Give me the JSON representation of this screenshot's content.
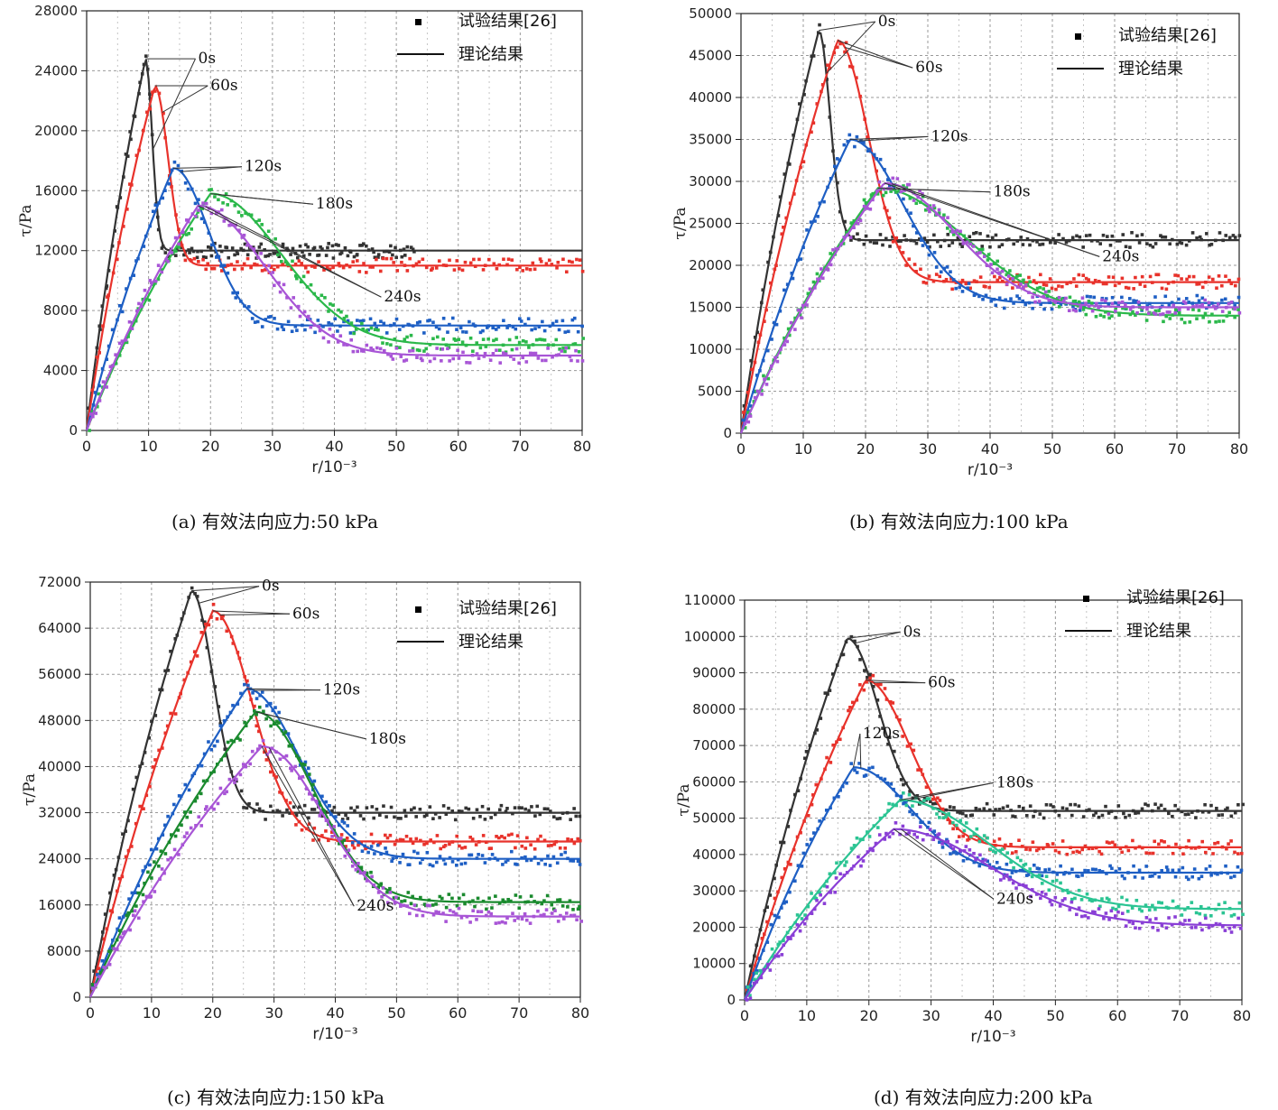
{
  "chart_data": [
    {
      "id": "a",
      "type": "scatter+line",
      "caption": "(a) 有效法向应力:50 kPa",
      "xlabel": "r/10⁻³",
      "ylabel": "τ/Pa",
      "xlim": [
        0,
        80
      ],
      "ylim": [
        0,
        28000
      ],
      "xticks": [
        0,
        10,
        20,
        30,
        40,
        50,
        60,
        70,
        80
      ],
      "yticks": [
        0,
        4000,
        8000,
        12000,
        16000,
        20000,
        24000,
        28000
      ],
      "grid": true,
      "legend": {
        "placement": "top-right",
        "markers_label": "试验结果[26]",
        "line_label": "理论结果"
      },
      "series": [
        {
          "name": "0s",
          "color": "#333333",
          "peak_x": 9.5,
          "peak_y": 24800,
          "residual": 12000,
          "width": 1.5,
          "data_end": 53
        },
        {
          "name": "60s",
          "color": "#e8322b",
          "peak_x": 11,
          "peak_y": 23000,
          "residual": 11000,
          "width": 3,
          "data_end": 80
        },
        {
          "name": "120s",
          "color": "#1e5fc4",
          "peak_x": 14,
          "peak_y": 17500,
          "residual": 7000,
          "width": 8,
          "data_end": 80
        },
        {
          "name": "180s",
          "color": "#2bb84a",
          "peak_x": 20,
          "peak_y": 15800,
          "residual": 5700,
          "width": 16,
          "data_end": 80
        },
        {
          "name": "240s",
          "color": "#a855d6",
          "peak_x": 18,
          "peak_y": 15000,
          "residual": 5000,
          "width": 15,
          "data_end": 80
        }
      ],
      "annotations": [
        {
          "text": "0s",
          "x": 18,
          "y": 24500
        },
        {
          "text": "60s",
          "x": 20,
          "y": 22700
        },
        {
          "text": "120s",
          "x": 25.5,
          "y": 17300
        },
        {
          "text": "180s",
          "x": 37,
          "y": 14800
        },
        {
          "text": "240s",
          "x": 48,
          "y": 8600
        }
      ]
    },
    {
      "id": "b",
      "type": "scatter+line",
      "caption": "(b) 有效法向应力:100 kPa",
      "xlabel": "r/10⁻³",
      "ylabel": "τ/Pa",
      "xlim": [
        0,
        80
      ],
      "ylim": [
        0,
        50000
      ],
      "xticks": [
        0,
        10,
        20,
        30,
        40,
        50,
        60,
        70,
        80
      ],
      "yticks": [
        0,
        5000,
        10000,
        15000,
        20000,
        25000,
        30000,
        35000,
        40000,
        45000,
        50000
      ],
      "grid": true,
      "legend": {
        "placement": "top-right",
        "markers_label": "试验结果[26]",
        "line_label": "理论结果"
      },
      "series": [
        {
          "name": "0s",
          "color": "#333333",
          "peak_x": 12.5,
          "peak_y": 48000,
          "residual": 23000,
          "width": 2.5,
          "data_end": 80
        },
        {
          "name": "60s",
          "color": "#e8322b",
          "peak_x": 15.5,
          "peak_y": 46800,
          "residual": 18000,
          "width": 7,
          "data_end": 80
        },
        {
          "name": "120s",
          "color": "#1e5fc4",
          "peak_x": 17.5,
          "peak_y": 35000,
          "residual": 15500,
          "width": 12,
          "data_end": 80
        },
        {
          "name": "180s",
          "color": "#2bb84a",
          "peak_x": 22,
          "peak_y": 29200,
          "residual": 14000,
          "width": 20,
          "data_end": 80
        },
        {
          "name": "240s",
          "color": "#a855d6",
          "peak_x": 23,
          "peak_y": 29800,
          "residual": 15000,
          "width": 16,
          "data_end": 80
        }
      ],
      "annotations": [
        {
          "text": "0s",
          "x": 22,
          "y": 48500
        },
        {
          "text": "60s",
          "x": 28,
          "y": 43000
        },
        {
          "text": "120s",
          "x": 30.5,
          "y": 34800
        },
        {
          "text": "180s",
          "x": 40.5,
          "y": 28200
        },
        {
          "text": "240s",
          "x": 58,
          "y": 20500
        }
      ]
    },
    {
      "id": "c",
      "type": "scatter+line",
      "caption": "(c) 有效法向应力:150 kPa",
      "xlabel": "r/10⁻³",
      "ylabel": "τ/Pa",
      "xlim": [
        0,
        80
      ],
      "ylim": [
        0,
        72000
      ],
      "xticks": [
        0,
        10,
        20,
        30,
        40,
        50,
        60,
        70,
        80
      ],
      "yticks": [
        0,
        8000,
        16000,
        24000,
        32000,
        40000,
        48000,
        56000,
        64000,
        72000
      ],
      "grid": true,
      "legend": {
        "placement": "top-right",
        "markers_label": "试验结果[26]",
        "line_label": "理论结果"
      },
      "series": [
        {
          "name": "0s",
          "color": "#333333",
          "peak_x": 16.5,
          "peak_y": 70500,
          "residual": 32000,
          "width": 5,
          "data_end": 80
        },
        {
          "name": "60s",
          "color": "#e8322b",
          "peak_x": 20,
          "peak_y": 67000,
          "residual": 27000,
          "width": 9,
          "data_end": 80
        },
        {
          "name": "120s",
          "color": "#1e5fc4",
          "peak_x": 25.5,
          "peak_y": 53500,
          "residual": 24000,
          "width": 12,
          "data_end": 80
        },
        {
          "name": "180s",
          "color": "#1a8a2e",
          "peak_x": 27,
          "peak_y": 49500,
          "residual": 16500,
          "width": 13,
          "data_end": 80
        },
        {
          "name": "240s",
          "color": "#a855d6",
          "peak_x": 28,
          "peak_y": 43500,
          "residual": 14000,
          "width": 14,
          "data_end": 80
        }
      ],
      "annotations": [
        {
          "text": "0s",
          "x": 28,
          "y": 70500
        },
        {
          "text": "60s",
          "x": 33,
          "y": 65700
        },
        {
          "text": "120s",
          "x": 38,
          "y": 52500
        },
        {
          "text": "180s",
          "x": 45.5,
          "y": 44000
        },
        {
          "text": "240s",
          "x": 43.5,
          "y": 15000
        }
      ]
    },
    {
      "id": "d",
      "type": "scatter+line",
      "caption": "(d) 有效法向应力:200 kPa",
      "xlabel": "r/10⁻³",
      "ylabel": "τ/Pa",
      "xlim": [
        0,
        80
      ],
      "ylim": [
        0,
        110000
      ],
      "xticks": [
        0,
        10,
        20,
        30,
        40,
        50,
        60,
        70,
        80
      ],
      "yticks": [
        0,
        10000,
        20000,
        30000,
        40000,
        50000,
        60000,
        70000,
        80000,
        90000,
        100000,
        110000
      ],
      "grid": true,
      "legend": {
        "placement": "top-right",
        "markers_label": "试验结果[26]",
        "line_label": "理论结果"
      },
      "series": [
        {
          "name": "0s",
          "color": "#333333",
          "peak_x": 16.5,
          "peak_y": 99500,
          "residual": 52000,
          "width": 7,
          "data_end": 80
        },
        {
          "name": "60s",
          "color": "#e8322b",
          "peak_x": 19.5,
          "peak_y": 88000,
          "residual": 42000,
          "width": 10,
          "data_end": 80
        },
        {
          "name": "120s",
          "color": "#1e5fc4",
          "peak_x": 17.5,
          "peak_y": 64000,
          "residual": 35000,
          "width": 13,
          "data_end": 80
        },
        {
          "name": "180s",
          "color": "#2bc493",
          "peak_x": 25,
          "peak_y": 55000,
          "residual": 25000,
          "width": 20,
          "data_end": 80
        },
        {
          "name": "240s",
          "color": "#8a3fd6",
          "peak_x": 24,
          "peak_y": 47000,
          "residual": 20500,
          "width": 22,
          "data_end": 80
        }
      ],
      "annotations": [
        {
          "text": "0s",
          "x": 25.5,
          "y": 100000
        },
        {
          "text": "60s",
          "x": 29.5,
          "y": 86000
        },
        {
          "text": "120s",
          "x": 19,
          "y": 72000
        },
        {
          "text": "180s",
          "x": 40.5,
          "y": 58500
        },
        {
          "text": "240s",
          "x": 40.5,
          "y": 26500
        }
      ]
    }
  ]
}
